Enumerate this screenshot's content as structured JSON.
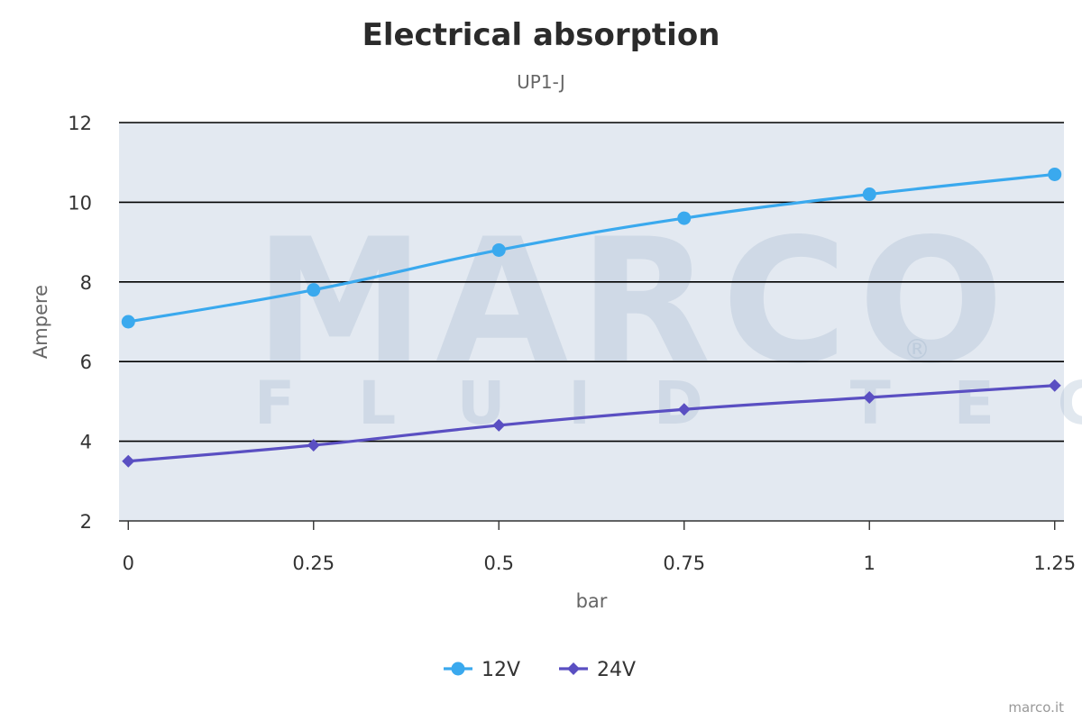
{
  "chart_data": {
    "type": "line",
    "title": "Electrical absorption",
    "subtitle": "UP1-J",
    "xlabel": "bar",
    "ylabel": "Ampere",
    "x": [
      0,
      0.25,
      0.5,
      0.75,
      1,
      1.25
    ],
    "x_tick_labels": [
      "0",
      "0.25",
      "0.5",
      "0.75",
      "1",
      "1.25"
    ],
    "y_ticks": [
      2,
      4,
      6,
      8,
      10,
      12
    ],
    "xlim": [
      -0.0125,
      1.2625
    ],
    "ylim": [
      2,
      12
    ],
    "grid": true,
    "legend_position": "bottom-center",
    "series": [
      {
        "name": "12V",
        "values": [
          7.0,
          7.8,
          8.8,
          9.6,
          10.2,
          10.7
        ],
        "color": "#3aa9ee",
        "marker": "circle"
      },
      {
        "name": "24V",
        "values": [
          3.5,
          3.9,
          4.4,
          4.8,
          5.1,
          5.4
        ],
        "color": "#5a4fc2",
        "marker": "diamond"
      }
    ]
  },
  "watermark": {
    "logo_text": "MARCO",
    "tagline": "FLUID TECH",
    "mark": "®"
  },
  "credit": "marco.it",
  "colors": {
    "plot_background": "#e3e9f1",
    "gridline": "#000000"
  }
}
